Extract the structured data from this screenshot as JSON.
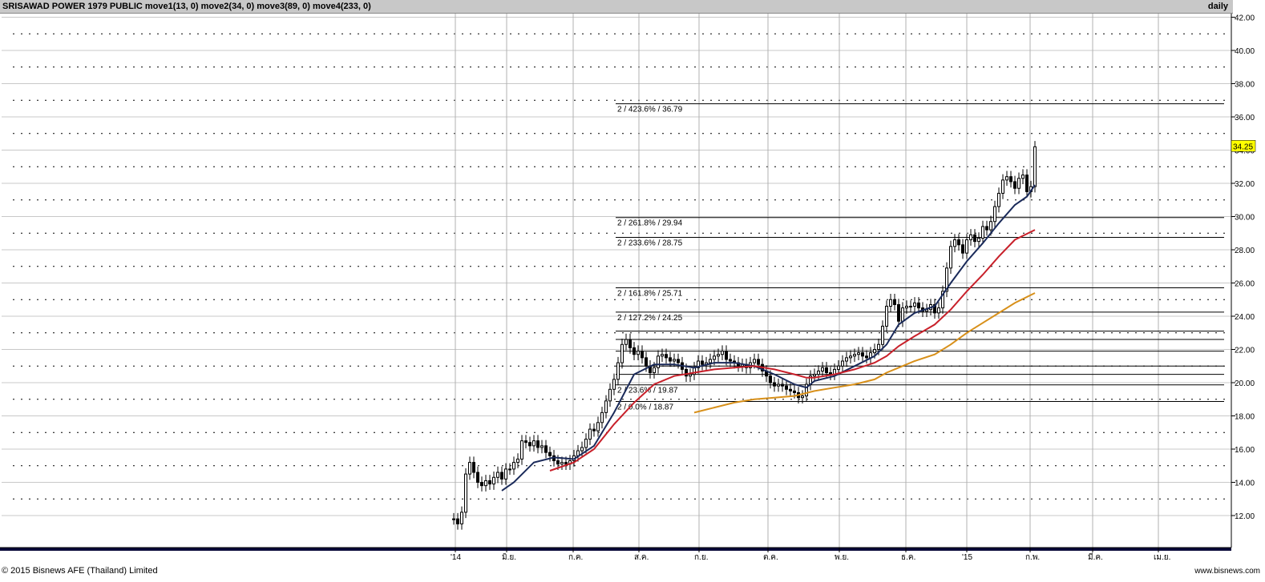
{
  "header": {
    "title": "SRISAWAD POWER 1979 PUBLIC move1(13, 0) move2(34, 0) move3(89, 0) move4(233, 0)",
    "timeframe": "daily"
  },
  "footer": {
    "copyright": "© 2015 Bisnews AFE (Thailand) Limited",
    "website": "www.bisnews.com"
  },
  "colors": {
    "move1": "#1a2a5a",
    "move2": "#c8202a",
    "move3": "#d8901a",
    "price_marker_bg": "#ffff00",
    "axis_band": "#0a0a3a"
  },
  "chart_data": {
    "type": "line",
    "title": "SRISAWAD POWER 1979 PUBLIC",
    "ylim": [
      11,
      42.8
    ],
    "y_ticks": [
      "12.00",
      "14.00",
      "16.00",
      "18.00",
      "20.00",
      "22.00",
      "24.00",
      "26.00",
      "28.00",
      "30.00",
      "32.00",
      "34.00",
      "36.00",
      "38.00",
      "40.00",
      "42.00"
    ],
    "x_labels": [
      "'14",
      "มิ.ย.",
      "ก.ค.",
      "ส.ค.",
      "ก.ย.",
      "ต.ค.",
      "พ.ย.",
      "ธ.ค.",
      "'15",
      "ก.พ.",
      "มี.ค.",
      "เม.ย."
    ],
    "last_price": "34.25",
    "fib_levels": [
      {
        "label": "2 / 423.6% / 36.79",
        "value": 36.79
      },
      {
        "label": "2 / 261.8% / 29.94",
        "value": 29.94
      },
      {
        "label": "2 / 233.6% / 28.75",
        "value": 28.75
      },
      {
        "label": "2 / 161.8% / 25.71",
        "value": 25.71
      },
      {
        "label": "2 / 127.2% / 24.25",
        "value": 24.25
      },
      {
        "label": "2 / 23.6% / 19.87",
        "value": 19.87
      },
      {
        "label": "2 / 0.0% / 18.87",
        "value": 18.87
      }
    ],
    "extra_levels": [
      23.1,
      22.6,
      21.9,
      21.0,
      20.5
    ],
    "price": [
      [
        0,
        11.8
      ],
      [
        2,
        11.5
      ],
      [
        4,
        12.2
      ],
      [
        6,
        14.5
      ],
      [
        8,
        15.2
      ],
      [
        10,
        14.6
      ],
      [
        12,
        14.0
      ],
      [
        14,
        13.8
      ],
      [
        16,
        14.1
      ],
      [
        18,
        13.9
      ],
      [
        20,
        14.3
      ],
      [
        22,
        14.6
      ],
      [
        24,
        14.2
      ],
      [
        26,
        14.8
      ],
      [
        28,
        14.8
      ],
      [
        30,
        15.2
      ],
      [
        32,
        15.4
      ],
      [
        34,
        16.5
      ],
      [
        36,
        16.4
      ],
      [
        38,
        16.2
      ],
      [
        40,
        16.5
      ],
      [
        42,
        16.1
      ],
      [
        44,
        16.2
      ],
      [
        46,
        15.8
      ],
      [
        48,
        15.6
      ],
      [
        50,
        15.3
      ],
      [
        52,
        15.1
      ],
      [
        54,
        15.2
      ],
      [
        56,
        15.1
      ],
      [
        58,
        15.3
      ],
      [
        60,
        15.6
      ],
      [
        62,
        15.9
      ],
      [
        64,
        16.1
      ],
      [
        66,
        16.6
      ],
      [
        68,
        17.2
      ],
      [
        70,
        17.1
      ],
      [
        72,
        17.6
      ],
      [
        74,
        18.2
      ],
      [
        76,
        18.9
      ],
      [
        78,
        19.6
      ],
      [
        80,
        20.2
      ],
      [
        82,
        21.2
      ],
      [
        84,
        22.3
      ],
      [
        86,
        22.6
      ],
      [
        88,
        22.1
      ],
      [
        90,
        21.7
      ],
      [
        92,
        21.9
      ],
      [
        94,
        21.5
      ],
      [
        96,
        21.0
      ],
      [
        98,
        20.6
      ],
      [
        100,
        20.9
      ],
      [
        102,
        21.6
      ],
      [
        104,
        21.7
      ],
      [
        106,
        21.5
      ],
      [
        108,
        21.3
      ],
      [
        110,
        21.4
      ],
      [
        112,
        21.2
      ],
      [
        114,
        20.8
      ],
      [
        116,
        20.4
      ],
      [
        118,
        20.5
      ],
      [
        120,
        20.9
      ],
      [
        122,
        21.3
      ],
      [
        124,
        21.1
      ],
      [
        126,
        21.2
      ],
      [
        128,
        21.4
      ],
      [
        130,
        21.6
      ],
      [
        132,
        21.7
      ],
      [
        134,
        21.9
      ],
      [
        136,
        21.4
      ],
      [
        138,
        21.3
      ],
      [
        140,
        21.2
      ],
      [
        142,
        21.0
      ],
      [
        144,
        21.1
      ],
      [
        146,
        20.9
      ],
      [
        148,
        21.2
      ],
      [
        150,
        21.4
      ],
      [
        152,
        21.1
      ],
      [
        154,
        20.7
      ],
      [
        156,
        20.4
      ],
      [
        158,
        20.0
      ],
      [
        160,
        19.8
      ],
      [
        162,
        19.9
      ],
      [
        164,
        19.8
      ],
      [
        166,
        19.6
      ],
      [
        168,
        19.5
      ],
      [
        170,
        19.4
      ],
      [
        172,
        19.1
      ],
      [
        174,
        19.2
      ],
      [
        176,
        19.9
      ],
      [
        178,
        20.4
      ],
      [
        180,
        20.5
      ],
      [
        182,
        20.7
      ],
      [
        184,
        20.9
      ],
      [
        186,
        20.6
      ],
      [
        188,
        20.5
      ],
      [
        190,
        20.8
      ],
      [
        192,
        21.0
      ],
      [
        194,
        21.3
      ],
      [
        196,
        21.5
      ],
      [
        198,
        21.6
      ],
      [
        200,
        21.7
      ],
      [
        202,
        21.8
      ],
      [
        204,
        21.6
      ],
      [
        206,
        21.5
      ],
      [
        208,
        21.8
      ],
      [
        210,
        22.0
      ],
      [
        212,
        22.3
      ],
      [
        214,
        23.4
      ],
      [
        216,
        24.6
      ],
      [
        218,
        25.0
      ],
      [
        220,
        24.7
      ],
      [
        222,
        23.7
      ],
      [
        224,
        24.5
      ],
      [
        226,
        24.6
      ],
      [
        228,
        24.6
      ],
      [
        230,
        24.8
      ],
      [
        232,
        24.5
      ],
      [
        234,
        24.3
      ],
      [
        236,
        24.4
      ],
      [
        238,
        24.7
      ],
      [
        240,
        24.2
      ],
      [
        242,
        24.5
      ],
      [
        244,
        25.5
      ],
      [
        246,
        26.9
      ],
      [
        248,
        28.2
      ],
      [
        250,
        28.6
      ],
      [
        252,
        28.3
      ],
      [
        254,
        27.8
      ],
      [
        256,
        28.6
      ],
      [
        258,
        28.9
      ],
      [
        260,
        28.5
      ],
      [
        262,
        28.7
      ],
      [
        264,
        29.4
      ],
      [
        266,
        29.2
      ],
      [
        268,
        29.7
      ],
      [
        270,
        30.6
      ],
      [
        272,
        31.4
      ],
      [
        274,
        32.2
      ],
      [
        276,
        32.4
      ],
      [
        278,
        32.1
      ],
      [
        280,
        31.7
      ],
      [
        282,
        32.3
      ],
      [
        284,
        32.5
      ],
      [
        286,
        31.5
      ],
      [
        288,
        31.8
      ],
      [
        290,
        34.2
      ]
    ],
    "series": [
      {
        "name": "move1(13, 0)",
        "values": [
          [
            24,
            13.5
          ],
          [
            30,
            14.0
          ],
          [
            40,
            15.2
          ],
          [
            50,
            15.5
          ],
          [
            60,
            15.4
          ],
          [
            70,
            16.2
          ],
          [
            80,
            18.2
          ],
          [
            90,
            20.5
          ],
          [
            100,
            21.1
          ],
          [
            110,
            21.1
          ],
          [
            120,
            20.9
          ],
          [
            130,
            21.2
          ],
          [
            140,
            21.2
          ],
          [
            150,
            21.0
          ],
          [
            160,
            20.5
          ],
          [
            170,
            19.9
          ],
          [
            176,
            19.7
          ],
          [
            180,
            20.1
          ],
          [
            190,
            20.4
          ],
          [
            200,
            21.0
          ],
          [
            210,
            21.6
          ],
          [
            216,
            22.3
          ],
          [
            222,
            23.5
          ],
          [
            230,
            24.2
          ],
          [
            240,
            24.6
          ],
          [
            248,
            26.0
          ],
          [
            256,
            27.3
          ],
          [
            264,
            28.4
          ],
          [
            272,
            29.6
          ],
          [
            280,
            30.7
          ],
          [
            286,
            31.2
          ],
          [
            290,
            31.9
          ]
        ]
      },
      {
        "name": "move2(34, 0)",
        "values": [
          [
            48,
            14.7
          ],
          [
            60,
            15.2
          ],
          [
            70,
            16.0
          ],
          [
            80,
            17.5
          ],
          [
            90,
            18.8
          ],
          [
            100,
            19.9
          ],
          [
            110,
            20.4
          ],
          [
            120,
            20.6
          ],
          [
            130,
            20.8
          ],
          [
            140,
            20.9
          ],
          [
            150,
            21.0
          ],
          [
            160,
            20.8
          ],
          [
            170,
            20.5
          ],
          [
            176,
            20.3
          ],
          [
            180,
            20.3
          ],
          [
            190,
            20.5
          ],
          [
            200,
            20.8
          ],
          [
            210,
            21.2
          ],
          [
            216,
            21.6
          ],
          [
            222,
            22.2
          ],
          [
            230,
            22.8
          ],
          [
            240,
            23.5
          ],
          [
            248,
            24.4
          ],
          [
            256,
            25.5
          ],
          [
            264,
            26.5
          ],
          [
            272,
            27.6
          ],
          [
            280,
            28.6
          ],
          [
            290,
            29.2
          ]
        ]
      },
      {
        "name": "move3(89, 0)",
        "values": [
          [
            120,
            18.2
          ],
          [
            130,
            18.5
          ],
          [
            140,
            18.8
          ],
          [
            150,
            19.0
          ],
          [
            160,
            19.1
          ],
          [
            170,
            19.2
          ],
          [
            180,
            19.5
          ],
          [
            190,
            19.7
          ],
          [
            200,
            19.9
          ],
          [
            210,
            20.2
          ],
          [
            216,
            20.6
          ],
          [
            222,
            20.9
          ],
          [
            230,
            21.3
          ],
          [
            240,
            21.7
          ],
          [
            248,
            22.3
          ],
          [
            256,
            23.0
          ],
          [
            264,
            23.6
          ],
          [
            272,
            24.2
          ],
          [
            280,
            24.8
          ],
          [
            290,
            25.4
          ]
        ]
      }
    ]
  }
}
